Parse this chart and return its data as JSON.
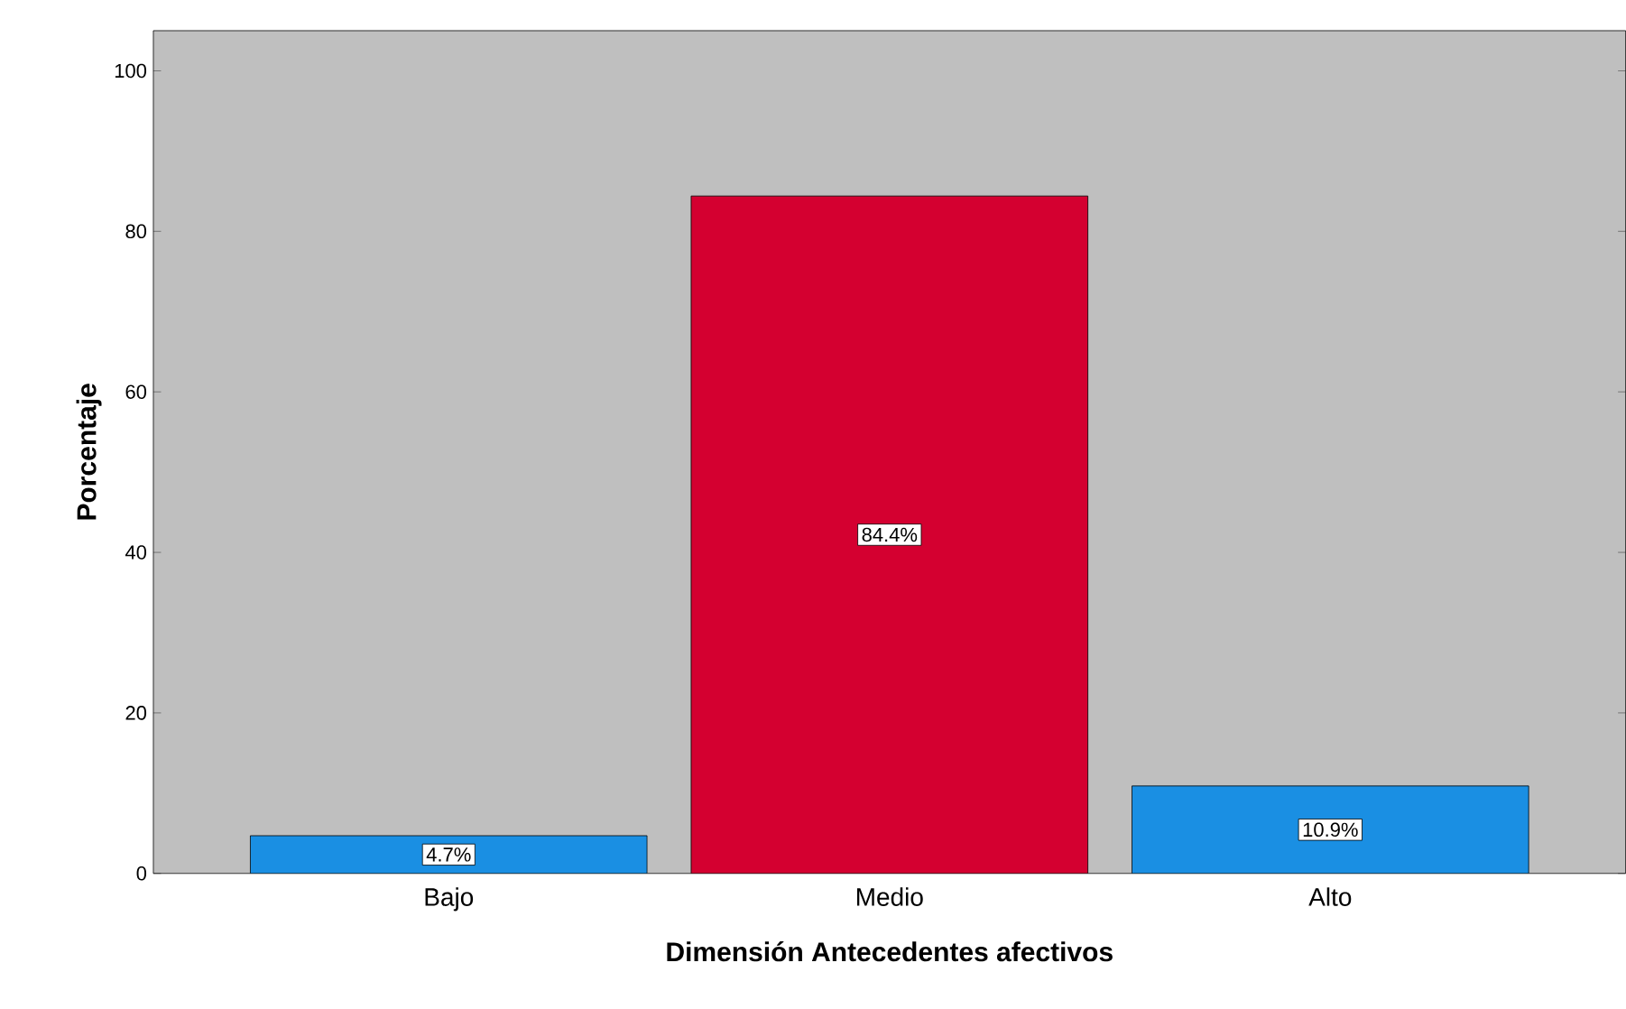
{
  "chart_data": {
    "type": "bar",
    "xlabel": "Dimensión Antecedentes afectivos",
    "ylabel": "Porcentaje",
    "categories": [
      "Bajo",
      "Medio",
      "Alto"
    ],
    "values": [
      4.7,
      84.4,
      10.9
    ],
    "colors": [
      "#1a8fe3",
      "#d40030",
      "#1a8fe3"
    ],
    "value_labels": [
      "4.7%",
      "84.4%",
      "10.9%"
    ],
    "ylim": [
      0,
      105
    ],
    "yticks": [
      0,
      20,
      40,
      60,
      80,
      100
    ],
    "grid": false
  }
}
